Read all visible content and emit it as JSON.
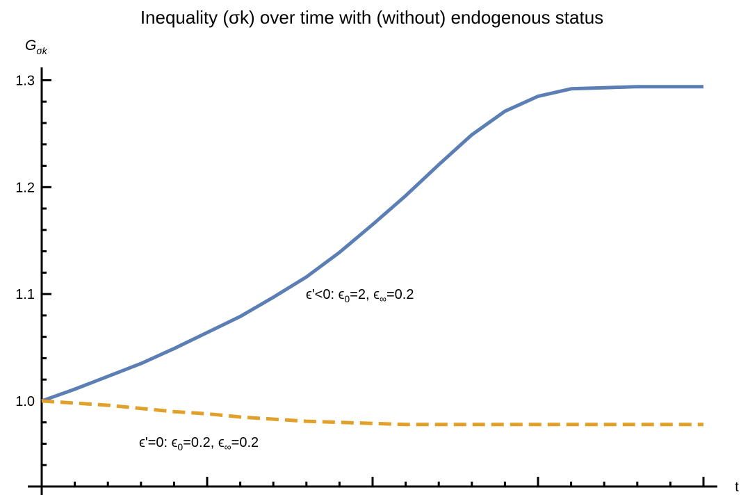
{
  "chart_data": {
    "type": "line",
    "title": "Inequality (σk) over time with (without) endogenous status",
    "ylabel": {
      "main": "G",
      "sub": "σk"
    },
    "xlabel": "t",
    "x": [
      0,
      1,
      2,
      3,
      4,
      5,
      6,
      7,
      8,
      9,
      10,
      11,
      12,
      13,
      14,
      15,
      16,
      17,
      18,
      19,
      20
    ],
    "xlim": [
      0,
      20
    ],
    "xticks": [
      0,
      1,
      2,
      3,
      4,
      5,
      6,
      7,
      8,
      9,
      10,
      11,
      12,
      13,
      14,
      15,
      16,
      17,
      18,
      19,
      20
    ],
    "ylim": [
      0.92,
      1.312
    ],
    "yticks": [
      {
        "value": 1,
        "label": "1.0"
      },
      1.1,
      1.2,
      1.3
    ],
    "yminorticks": [
      0.92,
      0.94,
      0.96,
      0.98,
      1.02,
      1.04,
      1.06,
      1.08,
      1.12,
      1.14,
      1.16,
      1.18,
      1.22,
      1.24,
      1.26,
      1.28
    ],
    "series": [
      {
        "color": "#5b7fb5",
        "dash": false,
        "values": [
          1.0,
          1.011,
          1.023,
          1.035,
          1.049,
          1.064,
          1.079,
          1.097,
          1.116,
          1.139,
          1.165,
          1.192,
          1.221,
          1.249,
          1.271,
          1.285,
          1.292,
          1.293,
          1.294,
          1.294,
          1.294
        ],
        "annotation": [
          {
            "text": "ϵ'<0: ϵ"
          },
          {
            "text": "0",
            "sub": true
          },
          {
            "text": "=2, ϵ"
          },
          {
            "text": "∞",
            "sub": true
          },
          {
            "text": "=0.2"
          }
        ]
      },
      {
        "color": "#e0a02a",
        "dash": true,
        "values": [
          1.0,
          0.998,
          0.996,
          0.993,
          0.99,
          0.988,
          0.985,
          0.983,
          0.981,
          0.98,
          0.979,
          0.978,
          0.978,
          0.978,
          0.978,
          0.978,
          0.978,
          0.978,
          0.978,
          0.978,
          0.978
        ],
        "annotation": [
          {
            "text": "ϵ'=0: ϵ"
          },
          {
            "text": "0",
            "sub": true
          },
          {
            "text": "=0.2, ϵ"
          },
          {
            "text": "∞",
            "sub": true
          },
          {
            "text": "=0.2"
          }
        ]
      }
    ]
  }
}
